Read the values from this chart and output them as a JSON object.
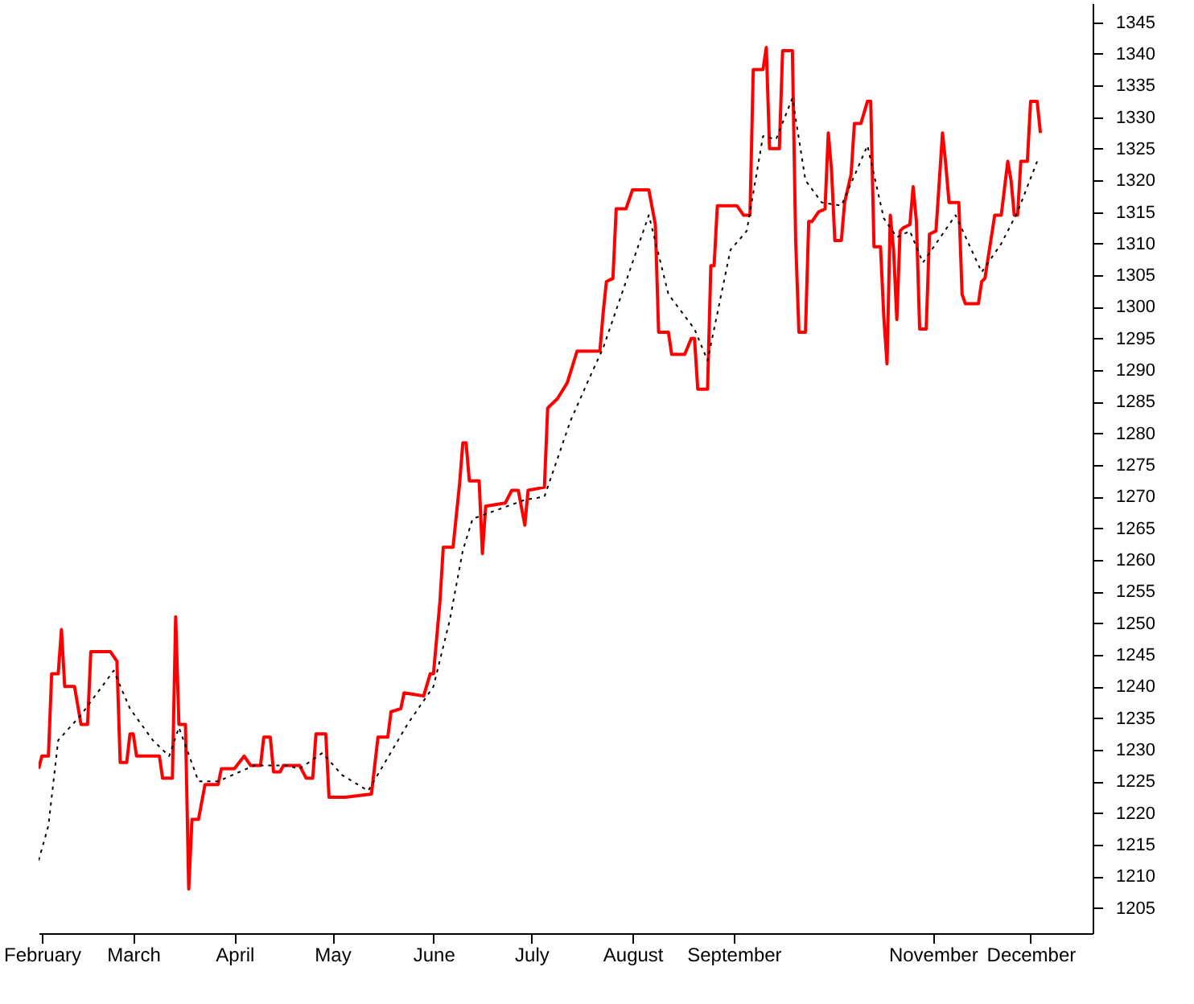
{
  "chart_data": {
    "type": "line",
    "xlim": [
      "--01-31",
      "--12-20"
    ],
    "xticks": [
      {
        "value": "--02-01",
        "label": "February"
      },
      {
        "value": "--03-01",
        "label": "March"
      },
      {
        "value": "--04-01",
        "label": "April"
      },
      {
        "value": "--05-01",
        "label": "May"
      },
      {
        "value": "--06-01",
        "label": "June"
      },
      {
        "value": "--07-01",
        "label": "July"
      },
      {
        "value": "--08-01",
        "label": "August"
      },
      {
        "value": "--09-01",
        "label": "September"
      },
      {
        "value": "--11-01",
        "label": "November"
      },
      {
        "value": "--12-01",
        "label": "December"
      }
    ],
    "ylim": [
      1201,
      1348
    ],
    "yticks": [
      1205,
      1210,
      1215,
      1220,
      1225,
      1230,
      1235,
      1240,
      1245,
      1250,
      1255,
      1260,
      1265,
      1270,
      1275,
      1280,
      1285,
      1290,
      1295,
      1300,
      1305,
      1310,
      1315,
      1320,
      1325,
      1330,
      1335,
      1340,
      1345
    ],
    "legend": false,
    "series": [
      {
        "color": "#ff0000",
        "line_style": "solid",
        "x": [
          "--01-31",
          "--02-01",
          "--02-03",
          "--02-04",
          "--02-06",
          "--02-07",
          "--02-08",
          "--02-11",
          "--02-13",
          "--02-15",
          "--02-16",
          "--02-22",
          "--02-24",
          "--02-25",
          "--02-27",
          "--02-28",
          "--03-01",
          "--03-02",
          "--03-09",
          "--03-10",
          "--03-13",
          "--03-14",
          "--03-15",
          "--03-17",
          "--03-18",
          "--03-19",
          "--03-21",
          "--03-23",
          "--03-27",
          "--03-28",
          "--04-01",
          "--04-04",
          "--04-06",
          "--04-09",
          "--04-10",
          "--04-12",
          "--04-13",
          "--04-15",
          "--04-16",
          "--04-21",
          "--04-23",
          "--04-25",
          "--04-26",
          "--04-29",
          "--04-30",
          "--05-05",
          "--05-13",
          "--05-15",
          "--05-18",
          "--05-19",
          "--05-22",
          "--05-23",
          "--05-29",
          "--05-31",
          "--06-01",
          "--06-03",
          "--06-04",
          "--06-07",
          "--06-09",
          "--06-10",
          "--06-11",
          "--06-12",
          "--06-15",
          "--06-16",
          "--06-17",
          "--06-23",
          "--06-25",
          "--06-27",
          "--06-29",
          "--06-30",
          "--07-05",
          "--07-06",
          "--07-09",
          "--07-12",
          "--07-15",
          "--07-22",
          "--07-23",
          "--07-24",
          "--07-26",
          "--07-27",
          "--07-30",
          "--08-01",
          "--08-06",
          "--08-08",
          "--08-09",
          "--08-12",
          "--08-13",
          "--08-17",
          "--08-19",
          "--08-20",
          "--08-21",
          "--08-24",
          "--08-25",
          "--08-26",
          "--08-27",
          "--09-02",
          "--09-04",
          "--09-06",
          "--09-07",
          "--09-10",
          "--09-11",
          "--09-12",
          "--09-15",
          "--09-16",
          "--09-19",
          "--09-20",
          "--09-21",
          "--09-23",
          "--09-24",
          "--09-25",
          "--09-27",
          "--09-29",
          "--09-30",
          "--10-01",
          "--10-02",
          "--10-04",
          "--10-05",
          "--10-07",
          "--10-08",
          "--10-10",
          "--10-12",
          "--10-13",
          "--10-14",
          "--10-16",
          "--10-17",
          "--10-18",
          "--10-19",
          "--10-20",
          "--10-21",
          "--10-22",
          "--10-23",
          "--10-25",
          "--10-26",
          "--10-27",
          "--10-28",
          "--10-30",
          "--10-31",
          "--11-02",
          "--11-04",
          "--11-05",
          "--11-06",
          "--11-09",
          "--11-10",
          "--11-11",
          "--11-15",
          "--11-16",
          "--11-17",
          "--11-20",
          "--11-22",
          "--11-24",
          "--11-25",
          "--11-26",
          "--11-27",
          "--11-28",
          "--11-30",
          "--12-01",
          "--12-03",
          "--12-04"
        ],
        "values": [
          1227,
          1229,
          1229,
          1242,
          1242,
          1249,
          1240,
          1240,
          1234,
          1234,
          1245.5,
          1245.5,
          1244,
          1228,
          1228,
          1232.5,
          1232.5,
          1229,
          1229,
          1225.5,
          1225.5,
          1251,
          1234,
          1234,
          1208,
          1219,
          1219,
          1224.5,
          1224.5,
          1227,
          1227,
          1229,
          1227.5,
          1227.5,
          1232,
          1232,
          1226.5,
          1226.5,
          1227.5,
          1227.5,
          1225.5,
          1225.5,
          1232.5,
          1232.5,
          1222.5,
          1222.5,
          1223,
          1232,
          1232,
          1236,
          1236.5,
          1239,
          1238.5,
          1242,
          1242,
          1253.5,
          1262,
          1262,
          1272,
          1278.5,
          1278.5,
          1272.5,
          1272.5,
          1261,
          1268.5,
          1269,
          1271,
          1271,
          1265.5,
          1271,
          1271.5,
          1284,
          1285.5,
          1288,
          1293,
          1293,
          1299,
          1304,
          1304.5,
          1315.5,
          1315.5,
          1318.5,
          1318.5,
          1313,
          1296,
          1296,
          1292.5,
          1292.5,
          1295,
          1295,
          1287,
          1287,
          1306.5,
          1306.5,
          1316,
          1316,
          1314.5,
          1314.5,
          1337.5,
          1337.5,
          1341,
          1325,
          1325,
          1340.5,
          1340.5,
          1310.5,
          1296,
          1296,
          1313.5,
          1313.5,
          1315,
          1315.5,
          1327.5,
          1321.5,
          1310.5,
          1310.5,
          1316.5,
          1321,
          1329,
          1329,
          1332.5,
          1332.5,
          1309.5,
          1309.5,
          1298.5,
          1291,
          1314.5,
          1309,
          1298,
          1312,
          1312.5,
          1313,
          1319,
          1313.5,
          1296.5,
          1296.5,
          1311.5,
          1312,
          1327.5,
          1322.5,
          1316.5,
          1316.5,
          1302,
          1300.5,
          1300.5,
          1304,
          1304.5,
          1314.5,
          1314.5,
          1323,
          1320,
          1314.5,
          1314.5,
          1323,
          1323,
          1332.5,
          1332.5,
          1327.5
        ]
      },
      {
        "color": "#000000",
        "line_style": "dotted",
        "x": [
          "--01-31",
          "--02-03",
          "--02-06",
          "--02-13",
          "--02-23",
          "--02-28",
          "--03-07",
          "--03-12",
          "--03-15",
          "--03-21",
          "--03-27",
          "--04-07",
          "--04-17",
          "--04-21",
          "--04-28",
          "--05-04",
          "--05-12",
          "--05-24",
          "--06-01",
          "--06-06",
          "--06-10",
          "--06-13",
          "--06-21",
          "--06-29",
          "--07-05",
          "--07-13",
          "--07-19",
          "--07-23",
          "--08-06",
          "--08-12",
          "--08-20",
          "--08-24",
          "--08-31",
          "--09-05",
          "--09-10",
          "--09-14",
          "--09-19",
          "--09-23",
          "--09-28",
          "--10-04",
          "--10-12",
          "--10-17",
          "--10-21",
          "--10-25",
          "--10-29",
          "--11-08",
          "--11-16",
          "--11-22",
          "--11-27",
          "--12-03"
        ],
        "values": [
          1212.5,
          1218,
          1231.5,
          1235.5,
          1242.5,
          1236.5,
          1231.5,
          1229,
          1233.5,
          1225,
          1225,
          1227.5,
          1227.5,
          1227,
          1229.5,
          1226,
          1223.5,
          1234,
          1240,
          1250.5,
          1261.5,
          1266.5,
          1268,
          1269.5,
          1270,
          1282,
          1289,
          1293.5,
          1314.5,
          1302,
          1296.5,
          1291.5,
          1309,
          1312,
          1327,
          1326.5,
          1333,
          1320,
          1316.5,
          1316,
          1325.5,
          1314,
          1311,
          1312,
          1307,
          1314.5,
          1305.5,
          1310,
          1315,
          1323
        ]
      }
    ]
  }
}
